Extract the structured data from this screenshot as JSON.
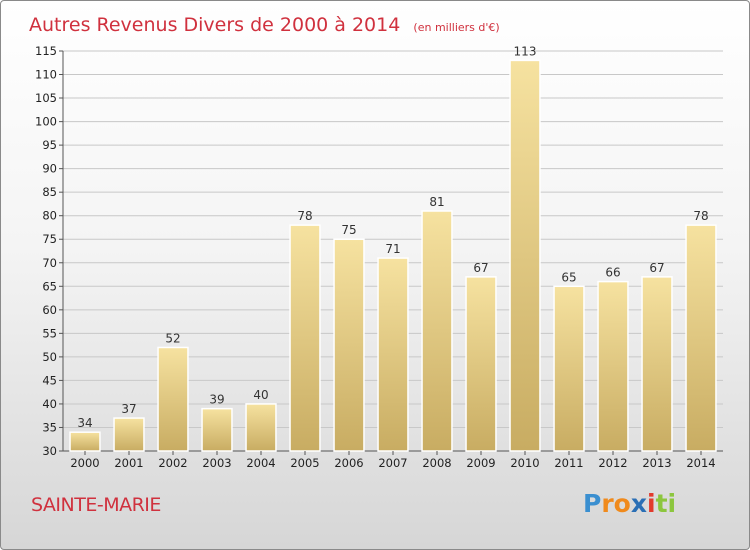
{
  "title": "Autres Revenus Divers de 2000 à 2014",
  "title_unit": "(en milliers d'€)",
  "place": "SAINTE-MARIE",
  "brand": {
    "letters": [
      "P",
      "r",
      "o",
      "x",
      "i",
      "t",
      "i"
    ],
    "colors": [
      "#3a8fd0",
      "#f08a1c",
      "#f08a1c",
      "#2b6fb5",
      "#e23a2c",
      "#8cc63e",
      "#8cc63e"
    ]
  },
  "colors": {
    "bar_light": "#f6e2a0",
    "bar_dark": "#c8ac62",
    "title": "#d0313e",
    "grid": "#c8c8c8"
  },
  "chart_data": {
    "type": "bar",
    "title": "Autres Revenus Divers de 2000 à 2014",
    "subtitle": "(en milliers d'€)",
    "categories": [
      "2000",
      "2001",
      "2002",
      "2003",
      "2004",
      "2005",
      "2006",
      "2007",
      "2008",
      "2009",
      "2010",
      "2011",
      "2012",
      "2013",
      "2014"
    ],
    "values": [
      34,
      37,
      52,
      39,
      40,
      78,
      75,
      71,
      81,
      67,
      113,
      65,
      66,
      67,
      78
    ],
    "ylim": [
      30,
      115
    ],
    "yticks": [
      30,
      35,
      40,
      45,
      50,
      55,
      60,
      65,
      70,
      75,
      80,
      85,
      90,
      95,
      100,
      105,
      110,
      115
    ],
    "grid": true,
    "xlabel": "",
    "ylabel": ""
  }
}
